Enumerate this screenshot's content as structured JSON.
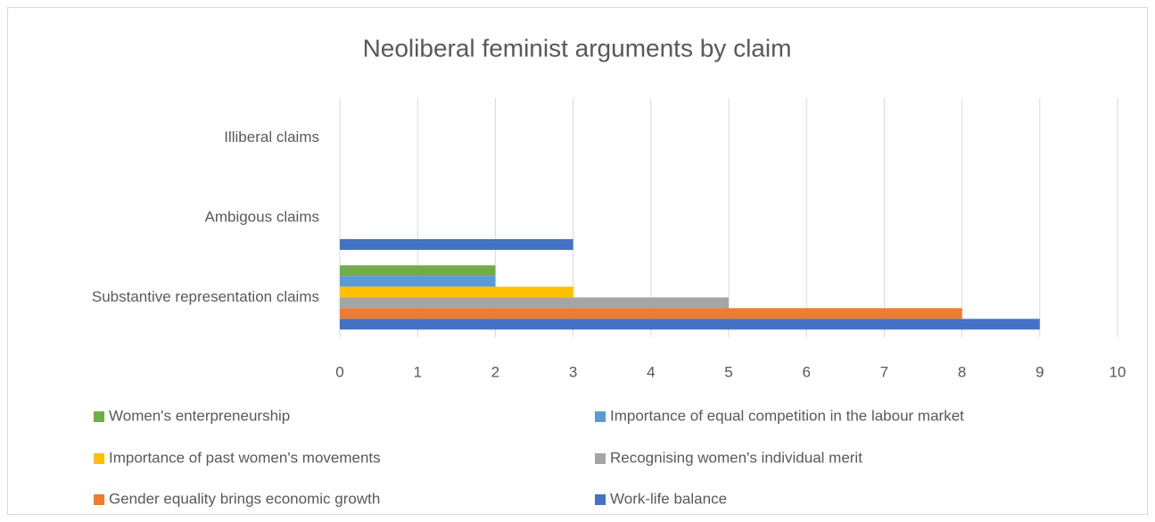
{
  "chart_data": {
    "type": "bar",
    "orientation": "horizontal",
    "title": "Neoliberal feminist arguments by claim",
    "categories": [
      "Substantive representation claims",
      "Ambigous claims",
      "Illiberal claims"
    ],
    "series": [
      {
        "name": "Women's enterpreneurship",
        "color": "#70ad47",
        "values": [
          2,
          null,
          null
        ]
      },
      {
        "name": "Importance of equal competition in the labour market",
        "color": "#5b9bd5",
        "values": [
          2,
          null,
          null
        ]
      },
      {
        "name": "Importance of past women's movements",
        "color": "#ffc000",
        "values": [
          3,
          null,
          null
        ]
      },
      {
        "name": "Recognising women's individual merit",
        "color": "#a5a5a5",
        "values": [
          5,
          null,
          null
        ]
      },
      {
        "name": "Gender equality brings economic growth",
        "color": "#ed7d31",
        "values": [
          8,
          null,
          null
        ]
      },
      {
        "name": "Work-life balance",
        "color": "#4472c4",
        "values": [
          9,
          3,
          null
        ]
      }
    ],
    "xlim": [
      0,
      10
    ],
    "xticks": [
      0,
      1,
      2,
      3,
      4,
      5,
      6,
      7,
      8,
      9,
      10
    ],
    "grid": true,
    "legend": "bottom"
  }
}
